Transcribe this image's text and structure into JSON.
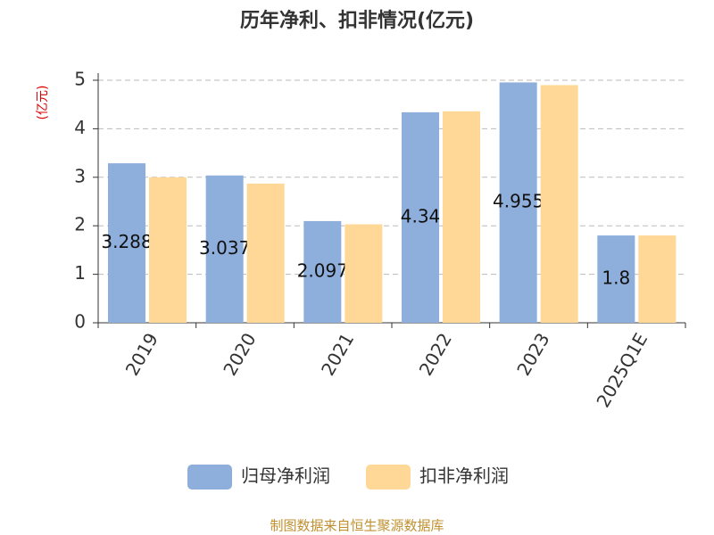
{
  "chart_data": {
    "type": "bar",
    "title": "历年净利、扣非情况(亿元)",
    "y_label": "(亿元)",
    "categories": [
      "2019",
      "2020",
      "2021",
      "2022",
      "2023",
      "2025Q1E"
    ],
    "series": [
      {
        "name": "归母净利润",
        "color": "#8eaedb",
        "values": [
          3.288,
          3.037,
          2.097,
          4.34,
          4.955,
          1.8
        ]
      },
      {
        "name": "扣非净利润",
        "color": "#ffd898",
        "values": [
          3.0,
          2.87,
          2.03,
          4.36,
          4.9,
          1.8
        ]
      }
    ],
    "ylim": [
      0,
      5
    ],
    "yticks": [
      0,
      1,
      2,
      3,
      4,
      5
    ],
    "grid": true,
    "legend": "bottom",
    "source": "制图数据来自恒生聚源数据库"
  }
}
